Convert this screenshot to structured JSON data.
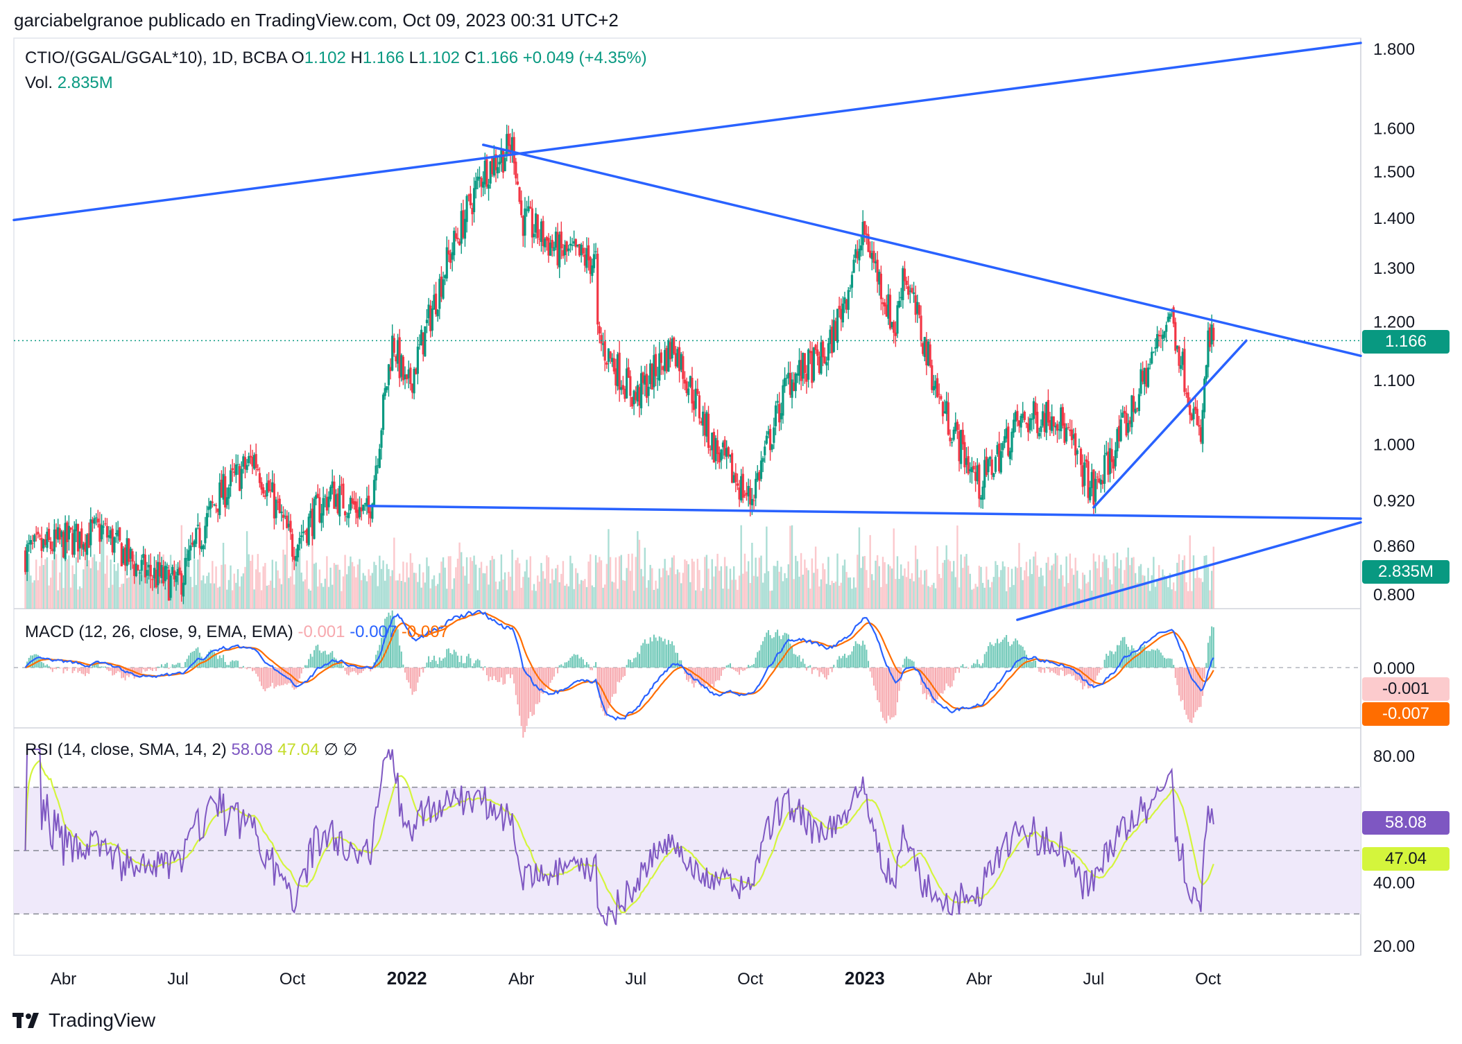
{
  "header": {
    "published": "garciabelgranoe publicado en TradingView.com, Oct 09, 2023 00:31 UTC+2",
    "symbol": "CTIO/(GGAL/GGAL*10), 1D, BCBA",
    "o_label": "O",
    "o_value": "1.102",
    "h_label": "H",
    "h_value": "1.166",
    "l_label": "L",
    "l_value": "1.102",
    "c_label": "C",
    "c_value": "1.166",
    "change": "+0.049 (+4.35%)",
    "vol_label": "Vol.",
    "vol_value": "2.835M"
  },
  "macd": {
    "label": "MACD (12, 26, close, 9, EMA, EMA)",
    "v1": "-0.001",
    "v2": "-0.007",
    "v3": "-0.007"
  },
  "rsi": {
    "label": "RSI (14, close, SMA, 14, 2)",
    "v1": "58.08",
    "v2": "47.04",
    "v3": "∅",
    "v4": "∅"
  },
  "tags": {
    "price": "1.166",
    "volume": "2.835M",
    "macd_hist": "-0.001",
    "macd_signal": "-0.007",
    "rsi": "58.08",
    "rsi_ma": "47.04"
  },
  "logo": {
    "text": "TradingView"
  },
  "colors": {
    "up": "#089981",
    "down": "#F23645",
    "trend": "#2962FF",
    "macd": "#2962FF",
    "signal": "#FF6D00",
    "rsi": "#7E57C2",
    "rsi_ma": "#D4F53C",
    "rsi_band": "#EFE9FA"
  },
  "chart_data": {
    "type": "candlestick",
    "price_axis": {
      "ticks": [
        "1.800",
        "1.600",
        "1.500",
        "1.400",
        "1.300",
        "1.200",
        "1.100",
        "1.000",
        "0.920",
        "0.860",
        "0.800"
      ],
      "scale": "log"
    },
    "macd_axis": {
      "ticks": [
        "0.000"
      ]
    },
    "rsi_axis": {
      "ticks": [
        "80.00",
        "40.00",
        "20.00"
      ],
      "bands": [
        30,
        70
      ]
    },
    "time_axis": [
      "Abr",
      "Jul",
      "Oct",
      "2022",
      "Abr",
      "Jul",
      "Oct",
      "2023",
      "Abr",
      "Jul",
      "Oct"
    ],
    "last_price": 1.166,
    "anchors": [
      {
        "date": "2021-03",
        "close": 0.85
      },
      {
        "date": "2021-05",
        "close": 0.88
      },
      {
        "date": "2021-06",
        "close": 0.83
      },
      {
        "date": "2021-07",
        "close": 0.81
      },
      {
        "date": "2021-08",
        "close": 0.92
      },
      {
        "date": "2021-09",
        "close": 0.98
      },
      {
        "date": "2021-10",
        "close": 0.86
      },
      {
        "date": "2021-11",
        "close": 0.93
      },
      {
        "date": "2021-12",
        "close": 0.9
      },
      {
        "date": "2021-12-20",
        "close": 1.17
      },
      {
        "date": "2022-01",
        "close": 1.08
      },
      {
        "date": "2022-02",
        "close": 1.3
      },
      {
        "date": "2022-03",
        "close": 1.5
      },
      {
        "date": "2022-03-25",
        "close": 1.56
      },
      {
        "date": "2022-04",
        "close": 1.4
      },
      {
        "date": "2022-05",
        "close": 1.33
      },
      {
        "date": "2022-05-30",
        "close": 1.31
      },
      {
        "date": "2022-06",
        "close": 1.17
      },
      {
        "date": "2022-07",
        "close": 1.07
      },
      {
        "date": "2022-08",
        "close": 1.16
      },
      {
        "date": "2022-09",
        "close": 1.0
      },
      {
        "date": "2022-10",
        "close": 0.92
      },
      {
        "date": "2022-11",
        "close": 1.1
      },
      {
        "date": "2022-12",
        "close": 1.14
      },
      {
        "date": "2023-01",
        "close": 1.37
      },
      {
        "date": "2023-01-25",
        "close": 1.18
      },
      {
        "date": "2023-02",
        "close": 1.3
      },
      {
        "date": "2023-03",
        "close": 1.06
      },
      {
        "date": "2023-04",
        "close": 0.94
      },
      {
        "date": "2023-05",
        "close": 1.03
      },
      {
        "date": "2023-06",
        "close": 1.05
      },
      {
        "date": "2023-07",
        "close": 0.93
      },
      {
        "date": "2023-08",
        "close": 1.05
      },
      {
        "date": "2023-09",
        "close": 1.22
      },
      {
        "date": "2023-09-25",
        "close": 1.0
      },
      {
        "date": "2023-10",
        "close": 1.166
      }
    ],
    "trendlines": [
      {
        "from": {
          "date": "2021-02",
          "price": 1.395
        },
        "to": {
          "date": "2024-02",
          "price": 1.815
        }
      },
      {
        "from": {
          "date": "2022-03",
          "price": 1.56
        },
        "to": {
          "date": "2024-02",
          "price": 1.14
        }
      },
      {
        "from": {
          "date": "2021-12",
          "price": 0.912
        },
        "to": {
          "date": "2024-02",
          "price": 0.895
        }
      },
      {
        "from": {
          "date": "2023-07",
          "price": 0.91
        },
        "to": {
          "date": "2023-11",
          "price": 1.166
        }
      },
      {
        "from": {
          "date": "2023-05",
          "price": 0.77
        },
        "to": {
          "date": "2024-02",
          "price": 0.89
        }
      }
    ]
  }
}
